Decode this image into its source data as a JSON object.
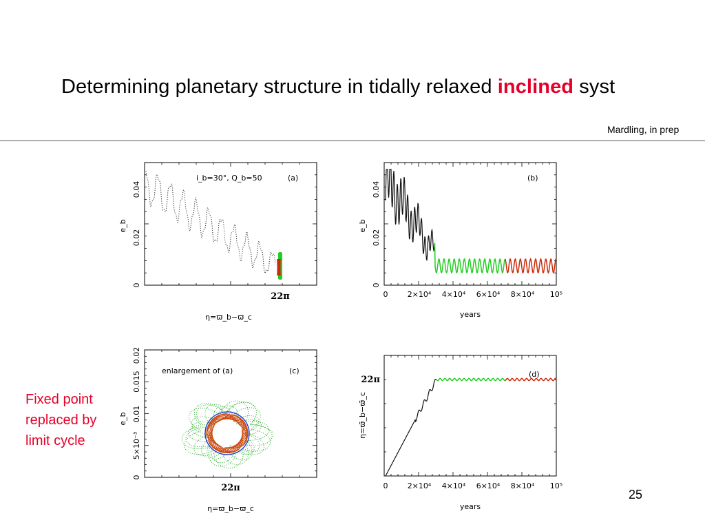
{
  "slide": {
    "title_before": "Determining planetary structure in tidally relaxed ",
    "title_highlight": "inclined",
    "title_after": " syst",
    "citation": "Mardling, in prep",
    "page_number": "25",
    "callout_lines": [
      "Fixed point",
      "replaced by",
      "limit cycle"
    ]
  },
  "colors": {
    "accent_red": "#e5002a",
    "black": "#000000",
    "green": "#22cc22",
    "red_orange": "#cc2a0a",
    "blue": "#1f3fd6"
  },
  "panels": {
    "a": {
      "tag": "(a)",
      "annotation": "i_b=30°, Q_b=50",
      "ylabel": "e_b",
      "yticks": [
        "0",
        "0.02",
        "0.04"
      ],
      "xtick": "22π",
      "xlabel": "η=ϖ_b−ϖ_c"
    },
    "b": {
      "tag": "(b)",
      "ylabel": "e_b",
      "yticks": [
        "0",
        "0.02",
        "0.04"
      ],
      "xticks": [
        "0",
        "2×10⁴",
        "4×10⁴",
        "6×10⁴",
        "8×10⁴",
        "10⁵"
      ],
      "xlabel": "years"
    },
    "c": {
      "tag": "(c)",
      "annotation": "enlargement of (a)",
      "ylabel": "e_b",
      "yticks": [
        "0",
        "5×10⁻³",
        "0.01",
        "0.015",
        "0.02"
      ],
      "xtick": "22π",
      "xlabel": "η=ϖ_b−ϖ_c"
    },
    "d": {
      "tag": "(d)",
      "ylabel": "η=ϖ̄_b−ϖ̄_c",
      "ytick": "22π",
      "xticks": [
        "0",
        "2×10⁴",
        "4×10⁴",
        "6×10⁴",
        "8×10⁴",
        "10⁵"
      ],
      "xlabel": "years"
    }
  }
}
